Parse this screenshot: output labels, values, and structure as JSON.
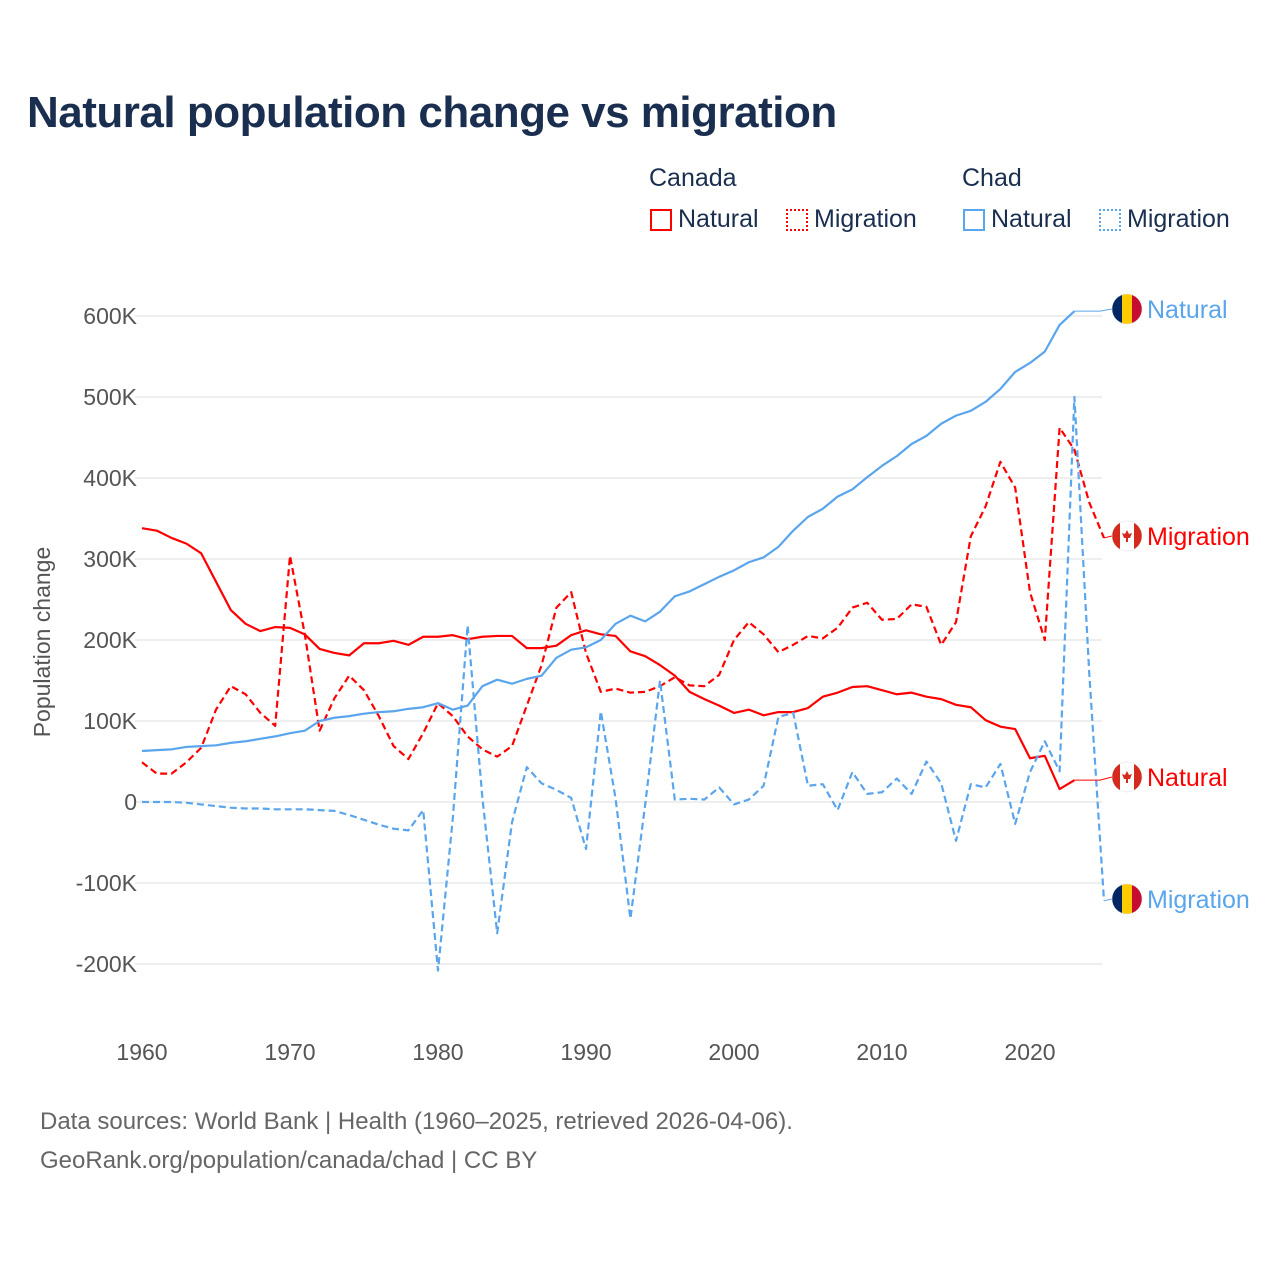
{
  "title": "Natural population change vs migration",
  "legend": {
    "groups": [
      {
        "name": "Canada",
        "items": [
          {
            "label": "Natural",
            "color": "#ff0000",
            "style": "solid"
          },
          {
            "label": "Migration",
            "color": "#ff0000",
            "style": "dotted"
          }
        ]
      },
      {
        "name": "Chad",
        "items": [
          {
            "label": "Natural",
            "color": "#5aa5ec",
            "style": "solid"
          },
          {
            "label": "Migration",
            "color": "#5aa5ec",
            "style": "dotted"
          }
        ]
      }
    ]
  },
  "footer": {
    "line1": "Data sources: World Bank | Health (1960–2025, retrieved 2026-04-06).",
    "line2": "GeoRank.org/population/canada/chad | CC BY"
  },
  "chart_data": {
    "type": "line",
    "title": "Natural population change vs migration",
    "xlabel": "",
    "ylabel": "Population change",
    "xlim": [
      1960,
      2025
    ],
    "ylim": [
      -200000,
      600000
    ],
    "x_ticks": [
      "1960",
      "1970",
      "1980",
      "1990",
      "2000",
      "2010",
      "2020"
    ],
    "y_ticks": [
      {
        "v": 600000,
        "label": "600K"
      },
      {
        "v": 500000,
        "label": "500K"
      },
      {
        "v": 400000,
        "label": "400K"
      },
      {
        "v": 300000,
        "label": "300K"
      },
      {
        "v": 200000,
        "label": "200K"
      },
      {
        "v": 100000,
        "label": "100K"
      },
      {
        "v": 0,
        "label": "0"
      },
      {
        "v": -100000,
        "label": "-100K"
      },
      {
        "v": -200000,
        "label": "-200K"
      }
    ],
    "grid": true,
    "start_year": 1960,
    "series": [
      {
        "name": "Canada Natural",
        "end_label": "Natural",
        "country": "Canada",
        "color": "#ff0000",
        "dashed": false,
        "values": [
          338,
          335,
          326,
          319,
          307,
          272,
          237,
          220,
          211,
          216,
          215,
          207,
          189,
          184,
          181,
          196,
          196,
          199,
          194,
          204,
          204,
          206,
          201,
          204,
          205,
          205,
          190,
          190,
          193,
          206,
          212,
          207,
          205,
          186,
          180,
          169,
          156,
          136,
          127,
          119,
          110,
          114,
          107,
          111,
          111,
          116,
          130,
          135,
          142,
          143,
          138,
          133,
          135,
          130,
          127,
          120,
          117,
          101,
          93,
          90,
          54,
          57,
          16,
          27
        ]
      },
      {
        "name": "Canada Migration",
        "end_label": "Migration",
        "country": "Canada",
        "color": "#ff0000",
        "dashed": true,
        "values": [
          49,
          35,
          35,
          49,
          67,
          114,
          143,
          133,
          110,
          94,
          304,
          207,
          88,
          128,
          156,
          138,
          106,
          69,
          53,
          85,
          122,
          106,
          81,
          65,
          56,
          69,
          119,
          169,
          240,
          259,
          184,
          136,
          140,
          135,
          136,
          143,
          154,
          144,
          143,
          157,
          200,
          222,
          207,
          185,
          194,
          205,
          202,
          215,
          240,
          246,
          225,
          226,
          244,
          241,
          194,
          222,
          328,
          365,
          420,
          388,
          259,
          200,
          462,
          435,
          370,
          326
        ]
      },
      {
        "name": "Chad Natural",
        "end_label": "Natural",
        "country": "Chad",
        "color": "#5aa5ec",
        "dashed": false,
        "values": [
          63,
          64,
          65,
          68,
          69,
          70,
          73,
          75,
          78,
          81,
          85,
          88,
          100,
          104,
          106,
          109,
          111,
          112,
          115,
          117,
          122,
          114,
          119,
          143,
          151,
          146,
          152,
          156,
          178,
          188,
          191,
          200,
          220,
          230,
          223,
          235,
          254,
          260,
          269,
          278,
          286,
          296,
          302,
          315,
          335,
          352,
          362,
          377,
          386,
          401,
          415,
          427,
          442,
          452,
          467,
          477,
          483,
          494,
          510,
          531,
          542,
          556,
          589,
          606
        ]
      },
      {
        "name": "Chad Migration",
        "end_label": "Migration",
        "country": "Chad",
        "color": "#5aa5ec",
        "dashed": true,
        "values": [
          0,
          0,
          0,
          -1,
          -3,
          -5,
          -7,
          -8,
          -8,
          -9,
          -9,
          -9,
          -10,
          -11,
          -16,
          -22,
          -28,
          -33,
          -35,
          -10,
          -208,
          -20,
          218,
          5,
          -162,
          -25,
          43,
          23,
          15,
          5,
          -58,
          112,
          4,
          -144,
          -3,
          150,
          3,
          4,
          3,
          18,
          -3,
          3,
          20,
          105,
          110,
          20,
          22,
          -10,
          37,
          10,
          12,
          29,
          10,
          50,
          23,
          -48,
          22,
          18,
          47,
          -27,
          37,
          75,
          38,
          500,
          160,
          -122
        ]
      }
    ],
    "value_unit": "thousands"
  }
}
